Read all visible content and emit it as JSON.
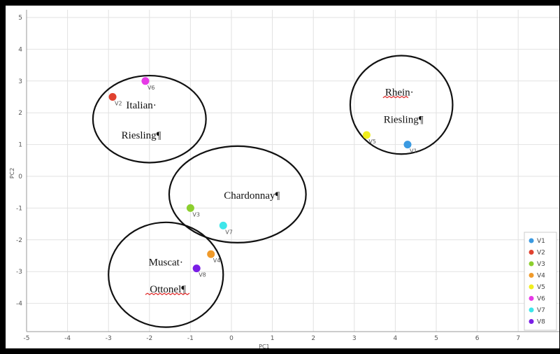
{
  "chart_data": {
    "type": "scatter",
    "xlabel": "PC1",
    "ylabel": "PC2",
    "xlim": [
      -5.1,
      8
    ],
    "ylim": [
      -4.7,
      5.3
    ],
    "x_ticks": [
      "-5",
      "-4",
      "-3",
      "-2",
      "-1",
      "0",
      "1",
      "2",
      "3",
      "4",
      "5",
      "6",
      "7"
    ],
    "y_ticks": [
      "-4",
      "-3",
      "-2",
      "-1",
      "0",
      "1",
      "2",
      "3",
      "4",
      "5"
    ],
    "grid": true,
    "legend_position": "bottom-right",
    "points": [
      {
        "name": "V1",
        "x": 4.3,
        "y": 1.0,
        "color": "#3b9ae1"
      },
      {
        "name": "V2",
        "x": -2.9,
        "y": 2.5,
        "color": "#e0412f"
      },
      {
        "name": "V3",
        "x": -1.0,
        "y": -1.0,
        "color": "#8ccf2e"
      },
      {
        "name": "V4",
        "x": -0.5,
        "y": -2.45,
        "color": "#f09a2a"
      },
      {
        "name": "V5",
        "x": 3.3,
        "y": 1.3,
        "color": "#f0ee1e"
      },
      {
        "name": "V6",
        "x": -2.1,
        "y": 3.0,
        "color": "#e63ae6"
      },
      {
        "name": "V7",
        "x": -0.2,
        "y": -1.55,
        "color": "#3ee6ea"
      },
      {
        "name": "V8",
        "x": -0.85,
        "y": -2.9,
        "color": "#7a1ee6"
      }
    ],
    "groups": [
      {
        "lines": [
          "Italian·",
          "Riesling¶"
        ],
        "cx": -2.0,
        "cy": 1.8,
        "rx": 1.38,
        "ry": 1.37
      },
      {
        "lines": [
          "Rhein·",
          "Riesling¶"
        ],
        "cx": 4.15,
        "cy": 2.25,
        "rx": 1.25,
        "ry": 1.55
      },
      {
        "lines": [
          "Chardonnay¶"
        ],
        "cx": 0.15,
        "cy": -0.57,
        "rx": 1.67,
        "ry": 1.52
      },
      {
        "lines": [
          "Muscat·",
          "Ottonel¶"
        ],
        "cx": -1.6,
        "cy": -3.1,
        "rx": 1.4,
        "ry": 1.65
      }
    ]
  }
}
